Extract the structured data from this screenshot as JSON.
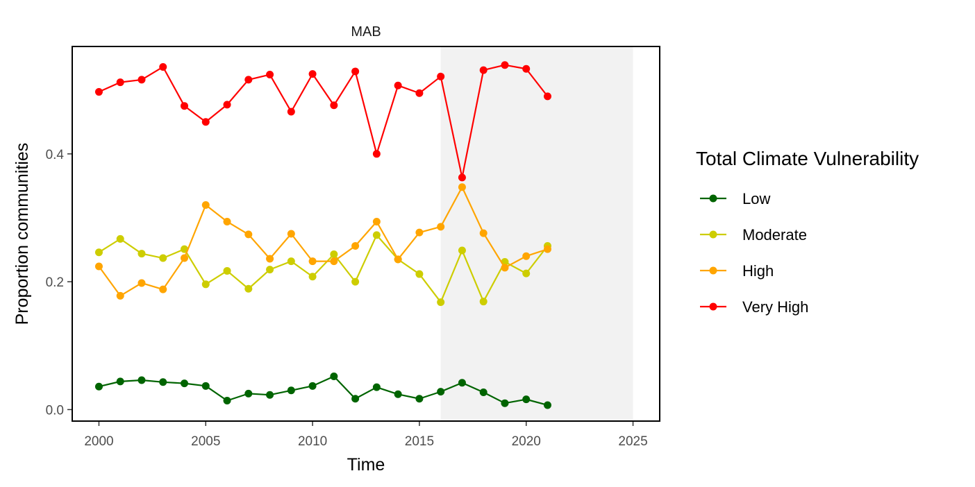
{
  "chart_data": {
    "type": "line",
    "title": "MAB",
    "xlabel": "Time",
    "ylabel": "Proportion communities",
    "xlim": [
      1998.75,
      2026.25
    ],
    "ylim": [
      -0.018,
      0.568
    ],
    "xticks": [
      2000,
      2005,
      2010,
      2015,
      2020,
      2025
    ],
    "yticks": [
      0.0,
      0.2,
      0.4
    ],
    "ytick_labels": [
      "0.0",
      "0.2",
      "0.4"
    ],
    "grid": false,
    "shaded_region": {
      "x_start": 2016,
      "x_end": 2025,
      "color": "#f2f2f2"
    },
    "legend": {
      "title": "Total Climate Vulnerability",
      "placement": "right"
    },
    "x": [
      2000,
      2001,
      2002,
      2003,
      2004,
      2005,
      2006,
      2007,
      2008,
      2009,
      2010,
      2011,
      2012,
      2013,
      2014,
      2015,
      2016,
      2017,
      2018,
      2019,
      2020,
      2021
    ],
    "series": [
      {
        "name": "Low",
        "color": "#006400",
        "values": [
          0.036,
          0.044,
          0.046,
          0.043,
          0.041,
          0.037,
          0.014,
          0.025,
          0.023,
          0.03,
          0.037,
          0.052,
          0.017,
          0.035,
          0.024,
          0.017,
          0.028,
          0.042,
          0.027,
          0.01,
          0.016,
          0.007
        ]
      },
      {
        "name": "Moderate",
        "color": "#cdcd00",
        "values": [
          0.246,
          0.267,
          0.244,
          0.237,
          0.251,
          0.196,
          0.217,
          0.189,
          0.219,
          0.232,
          0.208,
          0.243,
          0.2,
          0.273,
          0.235,
          0.212,
          0.168,
          0.249,
          0.169,
          0.231,
          0.213,
          0.256
        ]
      },
      {
        "name": "High",
        "color": "#ffa500",
        "values": [
          0.224,
          0.178,
          0.198,
          0.188,
          0.237,
          0.32,
          0.294,
          0.274,
          0.236,
          0.275,
          0.232,
          0.232,
          0.256,
          0.294,
          0.235,
          0.277,
          0.286,
          0.348,
          0.276,
          0.222,
          0.24,
          0.251
        ]
      },
      {
        "name": "Very High",
        "color": "#ff0000",
        "values": [
          0.497,
          0.512,
          0.516,
          0.536,
          0.475,
          0.45,
          0.477,
          0.516,
          0.524,
          0.466,
          0.525,
          0.476,
          0.529,
          0.4,
          0.507,
          0.495,
          0.521,
          0.363,
          0.531,
          0.539,
          0.533,
          0.49
        ]
      }
    ]
  }
}
